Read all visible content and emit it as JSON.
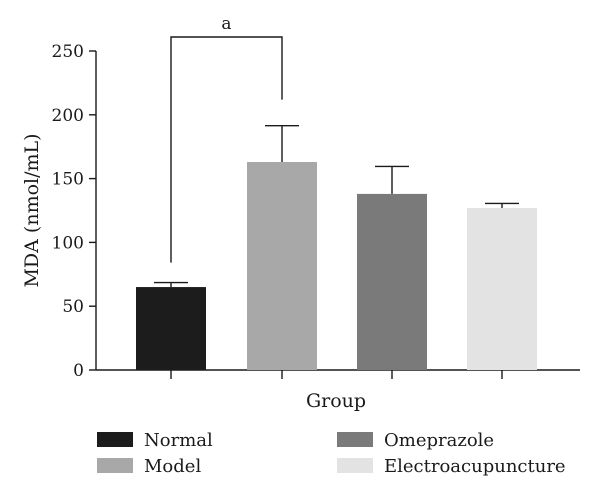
{
  "chart_data": {
    "type": "bar",
    "categories": [
      "Normal",
      "Model",
      "Omeprazole",
      "Electroacupuncture"
    ],
    "values": [
      65,
      163,
      138,
      127
    ],
    "errors": [
      3.5,
      28.5,
      21.5,
      3.5
    ],
    "colors": [
      "#1c1c1c",
      "#a8a8a8",
      "#7a7a7a",
      "#e3e3e3"
    ],
    "xlabel": "Group",
    "ylabel": "MDA (nmol/mL)",
    "ylim": [
      0,
      250
    ],
    "yticks": [
      "0",
      "50",
      "100",
      "150",
      "200",
      "250"
    ],
    "grid": false,
    "legend_position": "bottom",
    "annotation": {
      "text": "a",
      "between": [
        "Normal",
        "Model"
      ]
    }
  }
}
